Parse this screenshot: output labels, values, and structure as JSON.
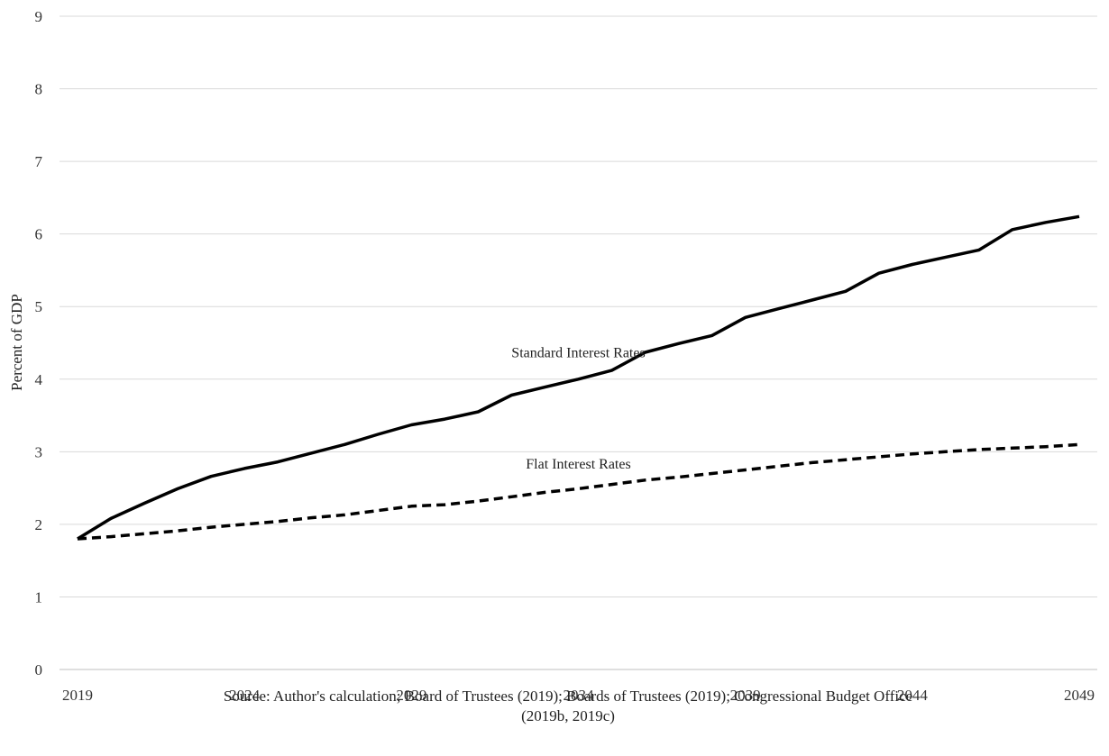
{
  "chart_data": {
    "type": "line",
    "ylabel": "Percent of GDP",
    "xlabel": "",
    "x": [
      2019,
      2020,
      2021,
      2022,
      2023,
      2024,
      2025,
      2026,
      2027,
      2028,
      2029,
      2030,
      2031,
      2032,
      2033,
      2034,
      2035,
      2036,
      2037,
      2038,
      2039,
      2040,
      2041,
      2042,
      2043,
      2044,
      2045,
      2046,
      2047,
      2048,
      2049
    ],
    "x_ticks": [
      2019,
      2024,
      2029,
      2034,
      2039,
      2044,
      2049
    ],
    "y_ticks": [
      0,
      1,
      2,
      3,
      4,
      5,
      6,
      7,
      8,
      9
    ],
    "xlim": [
      2019,
      2049
    ],
    "ylim": [
      0,
      9
    ],
    "grid": "horizontal",
    "series": [
      {
        "name": "Standard Interest Rates",
        "style": "solid",
        "color": "#000000",
        "values": [
          1.8,
          2.08,
          2.29,
          2.49,
          2.66,
          2.77,
          2.86,
          2.98,
          3.1,
          3.24,
          3.37,
          3.45,
          3.55,
          3.78,
          3.89,
          4.0,
          4.12,
          4.37,
          4.49,
          4.6,
          4.85,
          4.97,
          5.09,
          5.21,
          5.46,
          5.58,
          5.68,
          5.78,
          6.06,
          6.16,
          6.24
        ]
      },
      {
        "name": "Flat Interest Rates",
        "style": "dashed",
        "color": "#000000",
        "values": [
          1.8,
          1.83,
          1.87,
          1.91,
          1.96,
          2.0,
          2.04,
          2.09,
          2.13,
          2.19,
          2.25,
          2.27,
          2.32,
          2.38,
          2.44,
          2.49,
          2.55,
          2.61,
          2.65,
          2.7,
          2.75,
          2.8,
          2.85,
          2.89,
          2.93,
          2.97,
          3.0,
          3.03,
          3.05,
          3.07,
          3.1
        ]
      }
    ],
    "annotations": [
      {
        "text": "Standard Interest Rates",
        "x": 2034,
        "y": 4.3
      },
      {
        "text": "Flat Interest Rates",
        "x": 2034,
        "y": 2.77
      }
    ]
  },
  "source": {
    "line1": "Source: Author's calculation; Board of Trustees (2019); Boards of Trustees (2019); Congressional Budget Office",
    "line2": "(2019b, 2019c)"
  }
}
